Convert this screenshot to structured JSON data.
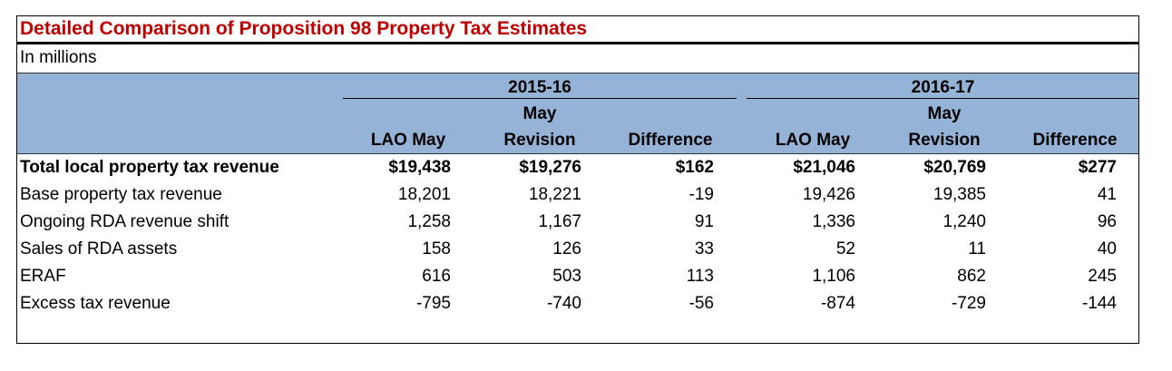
{
  "title": "Detailed Comparison of Proposition 98 Property Tax Estimates",
  "subtitle": "In millions",
  "years": [
    "2015-16",
    "2016-17"
  ],
  "columns": [
    {
      "line1": "",
      "line2": "LAO May"
    },
    {
      "line1": "May",
      "line2": "Revision"
    },
    {
      "line1": "",
      "line2": "Difference"
    }
  ],
  "rows": [
    {
      "label": "Total local property tax revenue",
      "bold": true,
      "values": [
        "$19,438",
        "$19,276",
        "$162",
        "$21,046",
        "$20,769",
        "$277"
      ]
    },
    {
      "label": "Base property tax revenue",
      "values": [
        "18,201",
        "18,221",
        "-19",
        "19,426",
        "19,385",
        "41"
      ]
    },
    {
      "label": "Ongoing RDA revenue shift",
      "values": [
        "1,258",
        "1,167",
        "91",
        "1,336",
        "1,240",
        "96"
      ]
    },
    {
      "label": "Sales of RDA assets",
      "values": [
        "158",
        "126",
        "33",
        "52",
        "11",
        "40"
      ]
    },
    {
      "label": "ERAF",
      "values": [
        "616",
        "503",
        "113",
        "1,106",
        "862",
        "245"
      ]
    },
    {
      "label": "Excess tax revenue",
      "values": [
        "-795",
        "-740",
        "-56",
        "-874",
        "-729",
        "-144"
      ]
    }
  ],
  "colors": {
    "title": "#c00000",
    "header_bg": "#95b3d7"
  }
}
